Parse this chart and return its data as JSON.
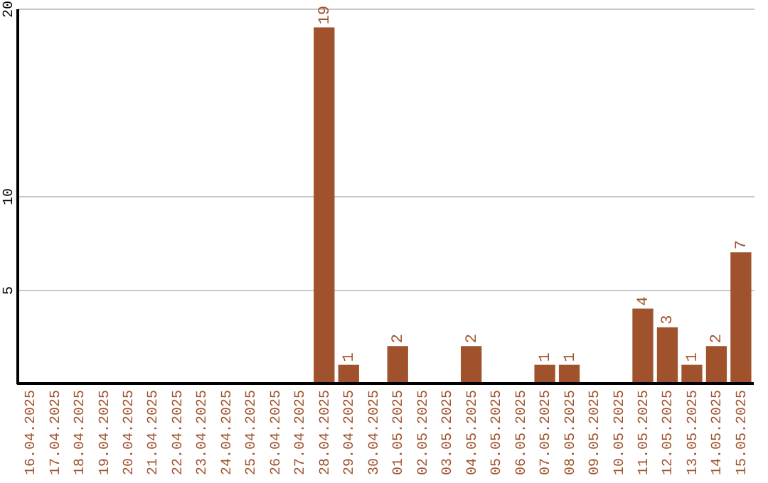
{
  "chart_data": {
    "type": "bar",
    "categories": [
      "16.04.2025",
      "17.04.2025",
      "18.04.2025",
      "19.04.2025",
      "20.04.2025",
      "21.04.2025",
      "22.04.2025",
      "23.04.2025",
      "24.04.2025",
      "25.04.2025",
      "26.04.2025",
      "27.04.2025",
      "28.04.2025",
      "29.04.2025",
      "30.04.2025",
      "01.05.2025",
      "02.05.2025",
      "03.05.2025",
      "04.05.2025",
      "05.05.2025",
      "06.05.2025",
      "07.05.2025",
      "08.05.2025",
      "09.05.2025",
      "10.05.2025",
      "11.05.2025",
      "12.05.2025",
      "13.05.2025",
      "14.05.2025",
      "15.05.2025"
    ],
    "values": [
      0,
      0,
      0,
      0,
      0,
      0,
      0,
      0,
      0,
      0,
      0,
      0,
      19,
      1,
      0,
      2,
      0,
      0,
      2,
      0,
      0,
      1,
      1,
      0,
      0,
      4,
      3,
      1,
      2,
      7
    ],
    "value_labels": [
      null,
      null,
      null,
      null,
      null,
      null,
      null,
      null,
      null,
      null,
      null,
      null,
      "19",
      "1",
      null,
      "2",
      null,
      null,
      "2",
      null,
      null,
      "1",
      "1",
      null,
      null,
      "4",
      "3",
      "1",
      "2",
      "7"
    ],
    "color": "#a0522d",
    "ylim": [
      0,
      20
    ],
    "yticks": [
      5,
      10,
      20
    ],
    "grid": true
  }
}
